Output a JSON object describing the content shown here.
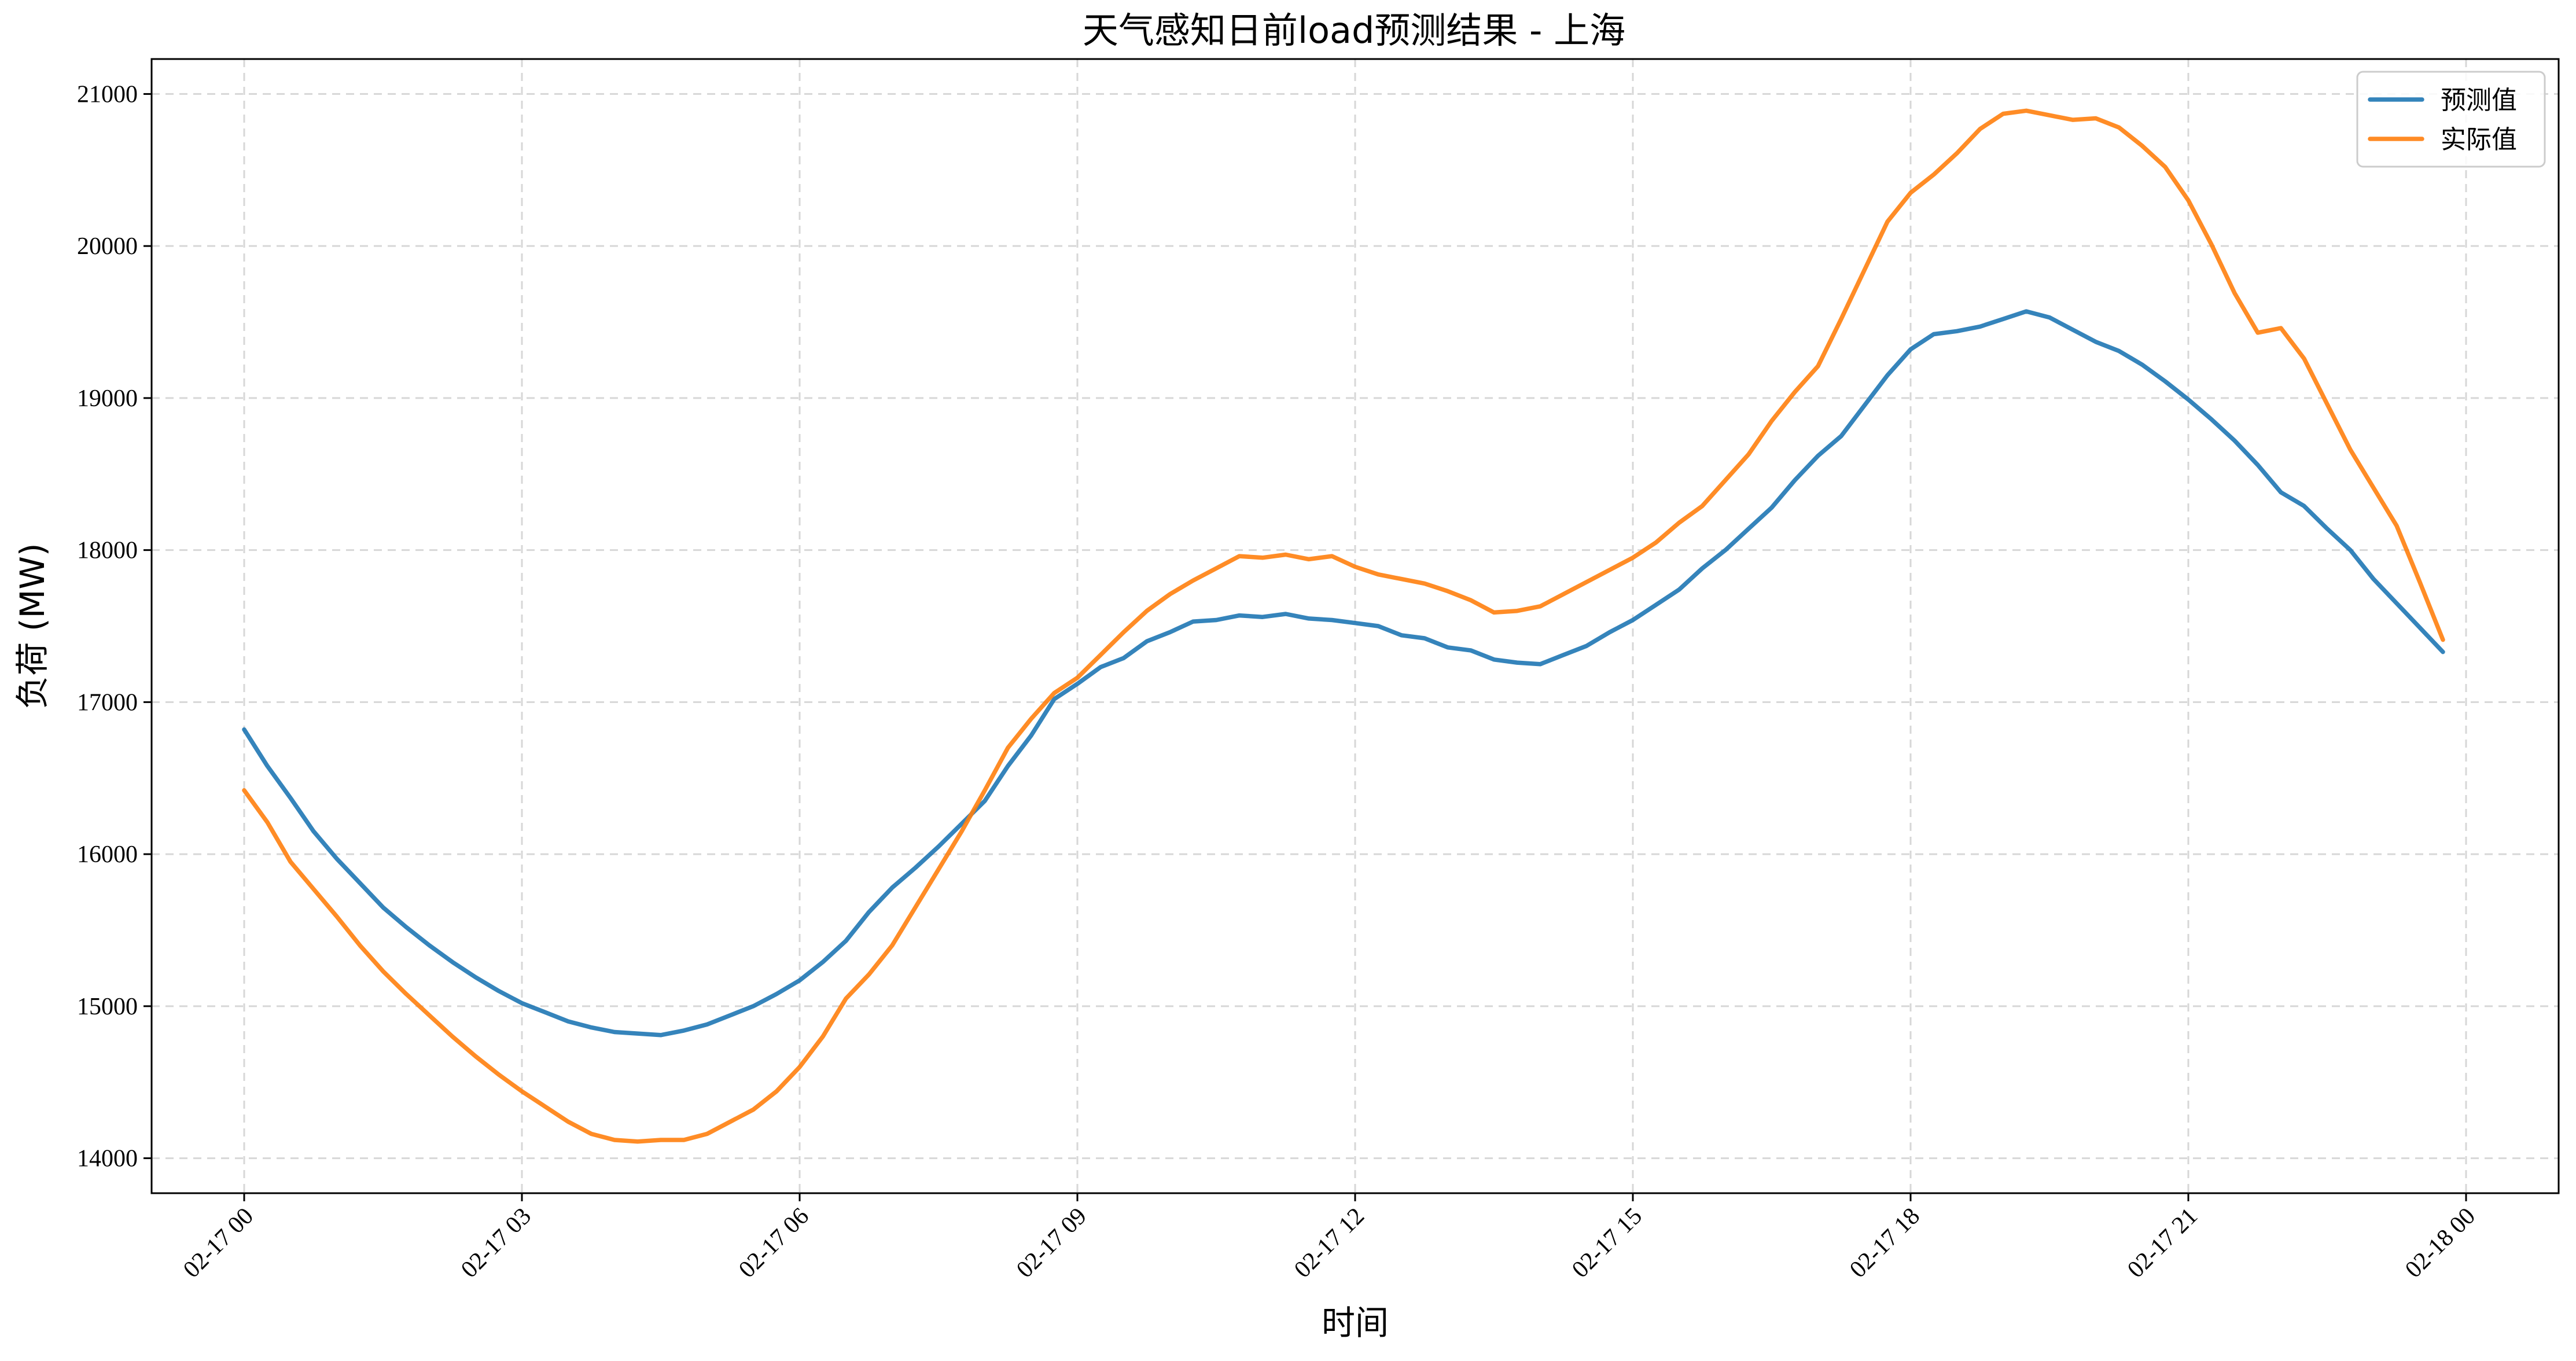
{
  "chart_data": {
    "type": "line",
    "title": "天气感知日前load预测结果 - 上海",
    "xlabel": "时间",
    "ylabel": "负荷 (MW)",
    "grid": true,
    "legend_position": "top-right",
    "x_unit": "hours from 02-17 00:00",
    "xlim": [
      -1.0,
      25.0
    ],
    "ylim": [
      13770,
      21230
    ],
    "x_ticks": [
      0,
      3,
      6,
      9,
      12,
      15,
      18,
      21,
      24
    ],
    "x_tick_labels": [
      "02-17 00",
      "02-17 03",
      "02-17 06",
      "02-17 09",
      "02-17 12",
      "02-17 15",
      "02-17 18",
      "02-17 21",
      "02-18 00"
    ],
    "y_ticks": [
      14000,
      15000,
      16000,
      17000,
      18000,
      19000,
      20000,
      21000
    ],
    "y_tick_labels": [
      "14000",
      "15000",
      "16000",
      "17000",
      "18000",
      "19000",
      "20000",
      "21000"
    ],
    "x": [
      0,
      0.25,
      0.5,
      0.75,
      1,
      1.25,
      1.5,
      1.75,
      2,
      2.25,
      2.5,
      2.75,
      3,
      3.25,
      3.5,
      3.75,
      4,
      4.25,
      4.5,
      4.75,
      5,
      5.25,
      5.5,
      5.75,
      6,
      6.25,
      6.5,
      6.75,
      7,
      7.25,
      7.5,
      7.75,
      8,
      8.25,
      8.5,
      8.75,
      9,
      9.25,
      9.5,
      9.75,
      10,
      10.25,
      10.5,
      10.75,
      11,
      11.25,
      11.5,
      11.75,
      12,
      12.25,
      12.5,
      12.75,
      13,
      13.25,
      13.5,
      13.75,
      14,
      14.25,
      14.5,
      14.75,
      15,
      15.25,
      15.5,
      15.75,
      16,
      16.25,
      16.5,
      16.75,
      17,
      17.25,
      17.5,
      17.75,
      18,
      18.25,
      18.5,
      18.75,
      19,
      19.25,
      19.5,
      19.75,
      20,
      20.25,
      20.5,
      20.75,
      21,
      21.25,
      21.5,
      21.75,
      22,
      22.25,
      22.5,
      22.75,
      23,
      23.25,
      23.5,
      23.75
    ],
    "series": [
      {
        "name": "预测值",
        "color": "#1f77b4",
        "values": [
          16820,
          16580,
          16370,
          16150,
          15970,
          15810,
          15650,
          15520,
          15400,
          15290,
          15190,
          15100,
          15020,
          14960,
          14900,
          14860,
          14830,
          14820,
          14810,
          14840,
          14880,
          14940,
          15000,
          15080,
          15170,
          15290,
          15430,
          15620,
          15780,
          15910,
          16050,
          16200,
          16350,
          16580,
          16780,
          17020,
          17120,
          17230,
          17290,
          17400,
          17460,
          17530,
          17540,
          17570,
          17560,
          17580,
          17550,
          17540,
          17520,
          17500,
          17440,
          17420,
          17360,
          17340,
          17280,
          17260,
          17250,
          17310,
          17370,
          17460,
          17540,
          17640,
          17740,
          17880,
          18000,
          18140,
          18280,
          18460,
          18620,
          18750,
          18950,
          19150,
          19320,
          19420,
          19440,
          19470,
          19520,
          19570,
          19530,
          19450,
          19370,
          19310,
          19220,
          19110,
          18990,
          18860,
          18720,
          18560,
          18380,
          18290,
          18140,
          18000,
          17810,
          17650,
          17490,
          17330
        ]
      },
      {
        "name": "实际值",
        "color": "#ff7f0e",
        "values": [
          16420,
          16210,
          15950,
          15770,
          15590,
          15400,
          15230,
          15080,
          14940,
          14800,
          14670,
          14550,
          14440,
          14340,
          14240,
          14160,
          14120,
          14110,
          14120,
          14120,
          14160,
          14240,
          14320,
          14440,
          14600,
          14800,
          15050,
          15210,
          15400,
          15650,
          15900,
          16150,
          16420,
          16700,
          16890,
          17060,
          17160,
          17310,
          17460,
          17600,
          17710,
          17800,
          17880,
          17960,
          17950,
          17970,
          17940,
          17960,
          17890,
          17840,
          17810,
          17780,
          17730,
          17670,
          17590,
          17600,
          17630,
          17710,
          17790,
          17870,
          17950,
          18050,
          18180,
          18290,
          18460,
          18630,
          18850,
          19040,
          19210,
          19520,
          19840,
          20160,
          20350,
          20470,
          20610,
          20770,
          20870,
          20890,
          20860,
          20830,
          20840,
          20780,
          20660,
          20520,
          20300,
          20010,
          19690,
          19430,
          19460,
          19260,
          18960,
          18660,
          18410,
          18160,
          17790,
          17410
        ]
      }
    ]
  }
}
